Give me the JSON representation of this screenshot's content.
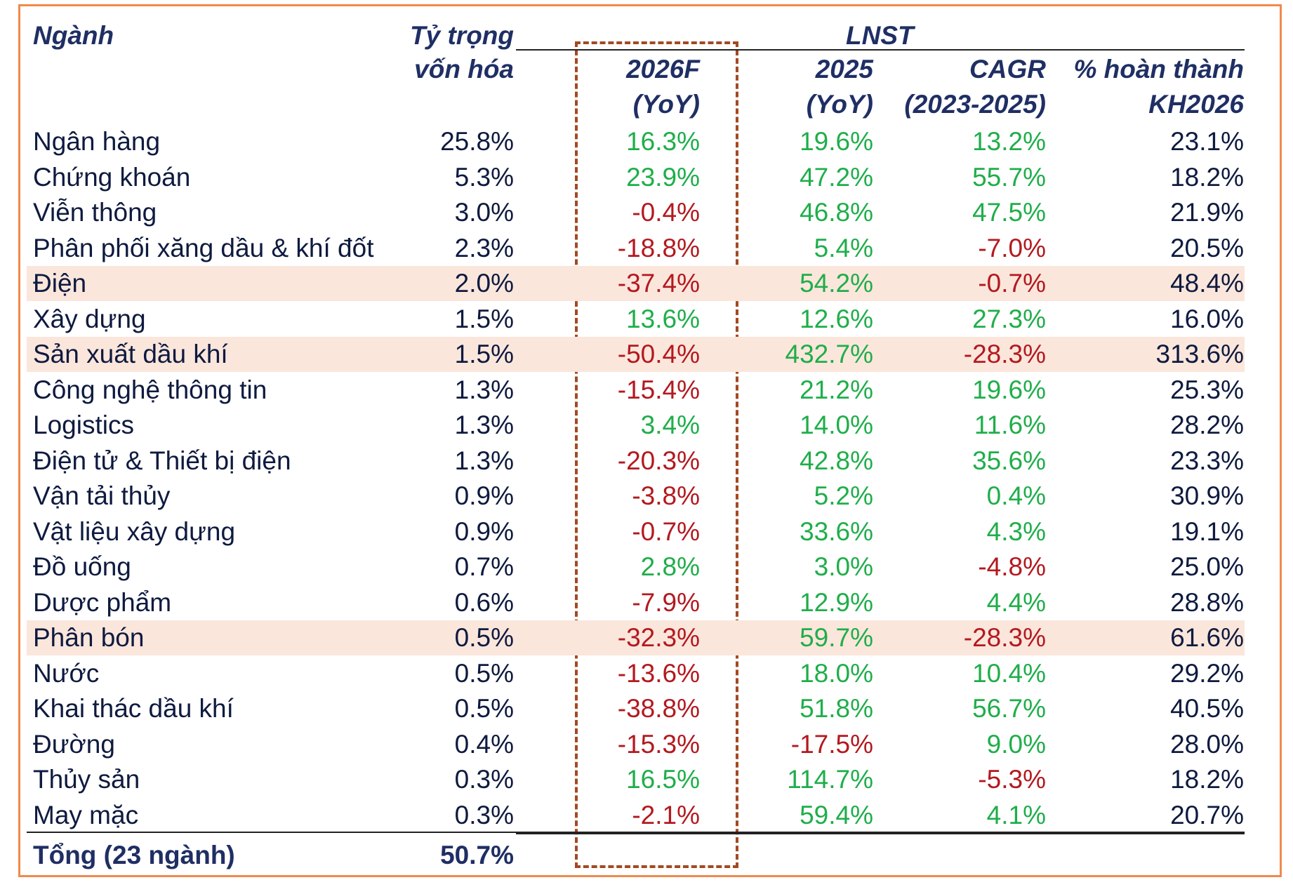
{
  "header": {
    "nganh": "Ngành",
    "ty_trong_line1": "Tỷ trọng",
    "ty_trong_line2": "vốn hóa",
    "lnst": "LNST",
    "col_2026f_line1": "2026F",
    "col_2026f_line2": "(YoY)",
    "col_2025_line1": "2025",
    "col_2025_line2": "(YoY)",
    "col_cagr_line1": "CAGR",
    "col_cagr_line2": "(2023-2025)",
    "col_ht_line1": "% hoàn thành",
    "col_ht_line2": "KH2026"
  },
  "rows": [
    {
      "name": "Ngân hàng",
      "weight": "25.8%",
      "f2026": "16.3%",
      "y2025": "19.6%",
      "cagr": "13.2%",
      "ht": "23.1%",
      "highlight": false
    },
    {
      "name": "Chứng khoán",
      "weight": "5.3%",
      "f2026": "23.9%",
      "y2025": "47.2%",
      "cagr": "55.7%",
      "ht": "18.2%",
      "highlight": false
    },
    {
      "name": "Viễn thông",
      "weight": "3.0%",
      "f2026": "-0.4%",
      "y2025": "46.8%",
      "cagr": "47.5%",
      "ht": "21.9%",
      "highlight": false
    },
    {
      "name": "Phân phối xăng dầu & khí đốt",
      "weight": "2.3%",
      "f2026": "-18.8%",
      "y2025": "5.4%",
      "cagr": "-7.0%",
      "ht": "20.5%",
      "highlight": false
    },
    {
      "name": "Điện",
      "weight": "2.0%",
      "f2026": "-37.4%",
      "y2025": "54.2%",
      "cagr": "-0.7%",
      "ht": "48.4%",
      "highlight": true
    },
    {
      "name": "Xây dựng",
      "weight": "1.5%",
      "f2026": "13.6%",
      "y2025": "12.6%",
      "cagr": "27.3%",
      "ht": "16.0%",
      "highlight": false
    },
    {
      "name": "Sản xuất dầu khí",
      "weight": "1.5%",
      "f2026": "-50.4%",
      "y2025": "432.7%",
      "cagr": "-28.3%",
      "ht": "313.6%",
      "highlight": true
    },
    {
      "name": "Công nghệ thông tin",
      "weight": "1.3%",
      "f2026": "-15.4%",
      "y2025": "21.2%",
      "cagr": "19.6%",
      "ht": "25.3%",
      "highlight": false
    },
    {
      "name": "Logistics",
      "weight": "1.3%",
      "f2026": "3.4%",
      "y2025": "14.0%",
      "cagr": "11.6%",
      "ht": "28.2%",
      "highlight": false
    },
    {
      "name": "Điện tử & Thiết bị điện",
      "weight": "1.3%",
      "f2026": "-20.3%",
      "y2025": "42.8%",
      "cagr": "35.6%",
      "ht": "23.3%",
      "highlight": false
    },
    {
      "name": "Vận tải thủy",
      "weight": "0.9%",
      "f2026": "-3.8%",
      "y2025": "5.2%",
      "cagr": "0.4%",
      "ht": "30.9%",
      "highlight": false
    },
    {
      "name": "Vật liệu xây dựng",
      "weight": "0.9%",
      "f2026": "-0.7%",
      "y2025": "33.6%",
      "cagr": "4.3%",
      "ht": "19.1%",
      "highlight": false
    },
    {
      "name": "Đồ uống",
      "weight": "0.7%",
      "f2026": "2.8%",
      "y2025": "3.0%",
      "cagr": "-4.8%",
      "ht": "25.0%",
      "highlight": false
    },
    {
      "name": "Dược phẩm",
      "weight": "0.6%",
      "f2026": "-7.9%",
      "y2025": "12.9%",
      "cagr": "4.4%",
      "ht": "28.8%",
      "highlight": false
    },
    {
      "name": "Phân bón",
      "weight": "0.5%",
      "f2026": "-32.3%",
      "y2025": "59.7%",
      "cagr": "-28.3%",
      "ht": "61.6%",
      "highlight": true
    },
    {
      "name": "Nước",
      "weight": "0.5%",
      "f2026": "-13.6%",
      "y2025": "18.0%",
      "cagr": "10.4%",
      "ht": "29.2%",
      "highlight": false
    },
    {
      "name": "Khai thác dầu khí",
      "weight": "0.5%",
      "f2026": "-38.8%",
      "y2025": "51.8%",
      "cagr": "56.7%",
      "ht": "40.5%",
      "highlight": false
    },
    {
      "name": "Đường",
      "weight": "0.4%",
      "f2026": "-15.3%",
      "y2025": "-17.5%",
      "cagr": "9.0%",
      "ht": "28.0%",
      "highlight": false
    },
    {
      "name": "Thủy sản",
      "weight": "0.3%",
      "f2026": "16.5%",
      "y2025": "114.7%",
      "cagr": "-5.3%",
      "ht": "18.2%",
      "highlight": false
    },
    {
      "name": "May mặc",
      "weight": "0.3%",
      "f2026": "-2.1%",
      "y2025": "59.4%",
      "cagr": "4.1%",
      "ht": "20.7%",
      "highlight": false
    }
  ],
  "total": {
    "name": "Tổng (23 ngành)",
    "weight": "50.7%"
  },
  "colors": {
    "positive": "#1fae4a",
    "negative": "#b3191f",
    "header": "#1f2f64",
    "highlight_row": "#fbe6dc",
    "frame": "#f08a4b",
    "dashed_box": "#a24a22"
  }
}
